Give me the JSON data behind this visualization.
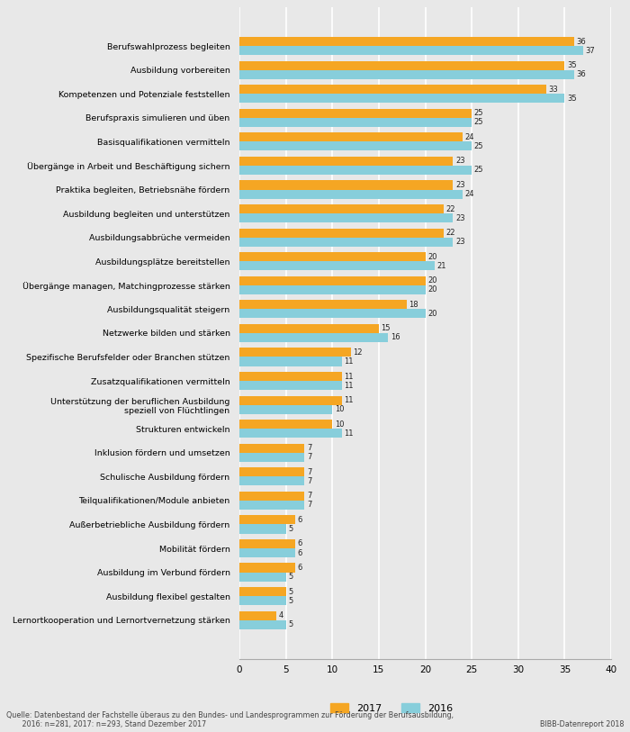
{
  "categories": [
    "Berufswahlprozess begleiten",
    "Ausbildung vorbereiten",
    "Kompetenzen und Potenziale feststellen",
    "Berufspraxis simulieren und üben",
    "Basisqualifikationen vermitteln",
    "Übergänge in Arbeit und Beschäftigung sichern",
    "Praktika begleiten, Betriebsnähe fördern",
    "Ausbildung begleiten und unterstützen",
    "Ausbildungsabbrüche vermeiden",
    "Ausbildungsplätze bereitstellen",
    "Übergänge managen, Matchingprozesse stärken",
    "Ausbildungsqualität steigern",
    "Netzwerke bilden und stärken",
    "Spezifische Berufsfelder oder Branchen stützen",
    "Zusatzqualifikationen vermitteln",
    "Unterstützung der beruflichen Ausbildung\nspeziell von Flüchtlingen",
    "Strukturen entwickeln",
    "Inklusion fördern und umsetzen",
    "Schulische Ausbildung fördern",
    "Teilqualifikationen/Module anbieten",
    "Außerbetriebliche Ausbildung fördern",
    "Mobilität fördern",
    "Ausbildung im Verbund fördern",
    "Ausbildung flexibel gestalten",
    "Lernortkooperation und Lernortvernetzung stärken"
  ],
  "values_2017": [
    36,
    35,
    33,
    25,
    24,
    23,
    23,
    22,
    22,
    20,
    20,
    18,
    15,
    12,
    11,
    11,
    10,
    7,
    7,
    7,
    6,
    6,
    6,
    5,
    4
  ],
  "values_2016": [
    37,
    36,
    35,
    25,
    25,
    25,
    24,
    23,
    23,
    21,
    20,
    20,
    16,
    11,
    11,
    10,
    11,
    7,
    7,
    7,
    5,
    6,
    5,
    5,
    5
  ],
  "color_2017": "#F5A623",
  "color_2016": "#87CEDB",
  "background_color": "#E8E8E8",
  "xlim": [
    0,
    40
  ],
  "xticks": [
    0,
    5,
    10,
    15,
    20,
    25,
    30,
    35,
    40
  ],
  "bar_height": 0.38,
  "source_text": "Quelle: Datenbestand der Fachstelle überaus zu den Bundes- und Landesprogrammen zur Förderung der Berufsausbildung,\n       2016: n=281, 2017: n=293, Stand Dezember 2017",
  "source_right": "BIBB-Datenreport 2018",
  "legend_2017": "2017",
  "legend_2016": "2016"
}
